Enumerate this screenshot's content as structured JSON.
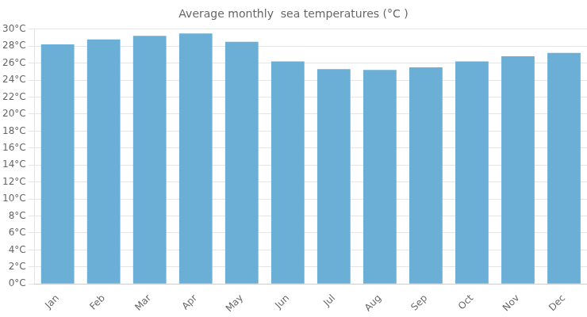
{
  "chart_data": {
    "type": "bar",
    "title": "Average monthly  sea temperatures (°C )",
    "categories": [
      "Jan",
      "Feb",
      "Mar",
      "Apr",
      "May",
      "Jun",
      "Jul",
      "Aug",
      "Sep",
      "Oct",
      "Nov",
      "Dec"
    ],
    "values": [
      28.2,
      28.8,
      29.2,
      29.5,
      28.5,
      26.2,
      25.3,
      25.2,
      25.5,
      26.2,
      26.8,
      27.2
    ],
    "color": "#6BAED6",
    "ylim": [
      0,
      30
    ],
    "yticks": [
      {
        "value": 0,
        "label": "0°C"
      },
      {
        "value": 2,
        "label": "2°C"
      },
      {
        "value": 4,
        "label": "4°C"
      },
      {
        "value": 6,
        "label": "6°C"
      },
      {
        "value": 8,
        "label": "8°C"
      },
      {
        "value": 10,
        "label": "10°C"
      },
      {
        "value": 12,
        "label": "12°C"
      },
      {
        "value": 14,
        "label": "14°C"
      },
      {
        "value": 16,
        "label": "16°C"
      },
      {
        "value": 18,
        "label": "18°C"
      },
      {
        "value": 20,
        "label": "20°C"
      },
      {
        "value": 22,
        "label": "22°C"
      },
      {
        "value": 24,
        "label": "24°C"
      },
      {
        "value": 26,
        "label": "26°C"
      },
      {
        "value": 28,
        "label": "28°C"
      },
      {
        "value": 30,
        "label": "30°C"
      }
    ],
    "grid": true
  }
}
